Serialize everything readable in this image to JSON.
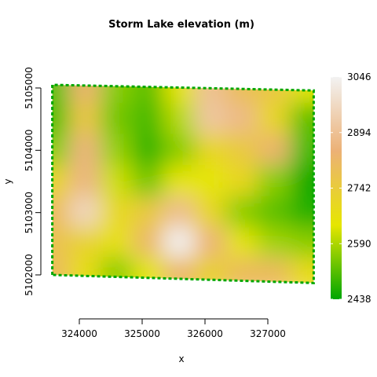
{
  "chart_data": {
    "type": "heatmap",
    "title": "Storm Lake elevation (m)",
    "xlabel": "x",
    "ylabel": "y",
    "xlim": [
      323500,
      327750
    ],
    "ylim": [
      5101900,
      5105050
    ],
    "x_ticks": [
      {
        "value": 324000,
        "label": "324000"
      },
      {
        "value": 325000,
        "label": "325000"
      },
      {
        "value": 326000,
        "label": "326000"
      },
      {
        "value": 327000,
        "label": "327000"
      }
    ],
    "y_ticks": [
      {
        "value": 5102000,
        "label": "5102000"
      },
      {
        "value": 5103000,
        "label": "5103000"
      },
      {
        "value": 5104000,
        "label": "5104000"
      },
      {
        "value": 5105000,
        "label": "5105000"
      }
    ],
    "colorbar": {
      "min": 2438,
      "max": 3046,
      "ticks": [
        {
          "value": 3046,
          "label": "3046"
        },
        {
          "value": 2894,
          "label": "2894"
        },
        {
          "value": 2742,
          "label": "2742"
        },
        {
          "value": 2590,
          "label": "2590"
        },
        {
          "value": 2438,
          "label": "2438"
        }
      ],
      "colors": [
        "#00a600",
        "#e6e600",
        "#ecb176",
        "#f2f2f2"
      ]
    },
    "extent": {
      "corners": [
        {
          "x": 323570,
          "y": 5102000
        },
        {
          "x": 323570,
          "y": 5105050
        },
        {
          "x": 327730,
          "y": 5104960
        },
        {
          "x": 327730,
          "y": 5101870
        }
      ]
    },
    "grid_x": [
      323600,
      324100,
      324600,
      325100,
      325600,
      326100,
      326600,
      327100,
      327650
    ],
    "grid_y": [
      5105000,
      5104500,
      5104000,
      5103500,
      5103000,
      5102500,
      5102050
    ],
    "values": [
      [
        2520,
        2830,
        2560,
        2520,
        2650,
        2890,
        2790,
        2760,
        2640
      ],
      [
        2510,
        2760,
        2540,
        2500,
        2600,
        2910,
        2870,
        2700,
        2520
      ],
      [
        2560,
        2850,
        2570,
        2480,
        2560,
        2700,
        2750,
        2830,
        2500
      ],
      [
        2700,
        2860,
        2620,
        2540,
        2650,
        2640,
        2700,
        2560,
        2450
      ],
      [
        2800,
        2960,
        2690,
        2750,
        2880,
        2700,
        2560,
        2520,
        2470
      ],
      [
        2780,
        2720,
        2660,
        2820,
        3046,
        2840,
        2650,
        2580,
        2560
      ],
      [
        2800,
        2670,
        2560,
        2640,
        2820,
        2720,
        2800,
        2800,
        2680
      ]
    ]
  }
}
